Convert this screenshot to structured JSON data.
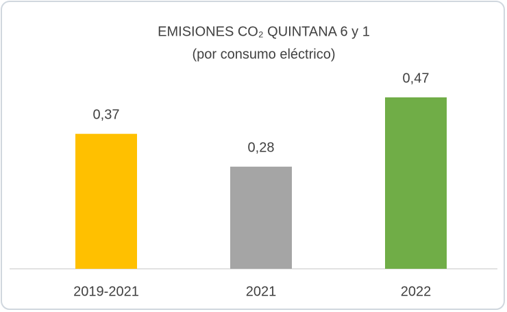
{
  "chart_data": {
    "type": "bar",
    "title": "EMISIONES CO₂ QUINTANA 6 y 1",
    "subtitle": "(por consumo eléctrico)",
    "categories": [
      "2019-2021",
      "2021",
      "2022"
    ],
    "values": [
      0.37,
      0.28,
      0.47
    ],
    "value_labels": [
      "0,37",
      "0,28",
      "0,47"
    ],
    "colors": [
      "#ffc000",
      "#a5a5a5",
      "#70ad47"
    ]
  }
}
